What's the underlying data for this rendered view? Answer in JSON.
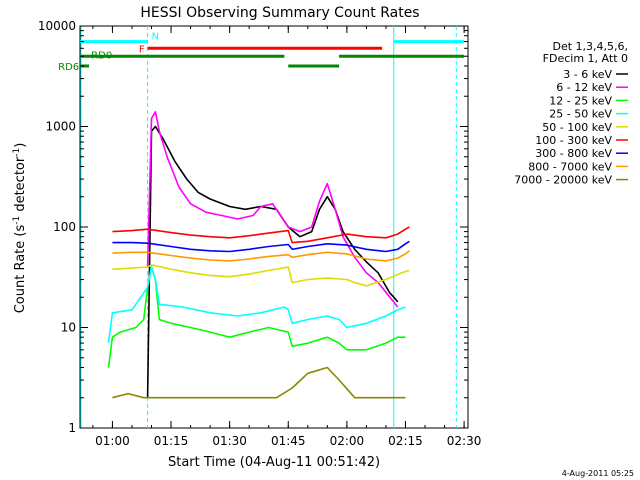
{
  "chart_data": {
    "type": "line",
    "title": "HESSI Observing Summary Count Rates",
    "xlabel": "Start Time (04-Aug-11 00:51:42)",
    "ylabel": "Count Rate (s⁻¹ detector⁻¹)",
    "ylabel_parts": {
      "main": "Count Rate (s",
      "sup1": "-1",
      "mid": " detector",
      "sup2": "-1",
      "end": ")"
    },
    "yscale": "log",
    "ylim": [
      1,
      10000
    ],
    "xlim": [
      "00:51:42",
      "02:31:00"
    ],
    "x_ticks": [
      "01:00",
      "01:15",
      "01:30",
      "01:45",
      "02:00",
      "02:15",
      "02:30"
    ],
    "y_ticks": [
      "1",
      "10",
      "100",
      "1000",
      "10000"
    ],
    "legend": {
      "header": [
        "Det 1,3,4,5,6,",
        "FDecim 1, Att 0"
      ],
      "position": "right",
      "entries": [
        {
          "label": "3 - 6 keV",
          "color": "#000000"
        },
        {
          "label": "6 - 12 keV",
          "color": "#ff00ff"
        },
        {
          "label": "12 - 25 keV",
          "color": "#00ff00"
        },
        {
          "label": "25 - 50 keV",
          "color": "#00ffff"
        },
        {
          "label": "50 - 100 keV",
          "color": "#dddd00"
        },
        {
          "label": "100 - 300 keV",
          "color": "#ff0000"
        },
        {
          "label": "300 - 800 keV",
          "color": "#0000ff"
        },
        {
          "label": "800 - 7000 keV",
          "color": "#ff9900"
        },
        {
          "label": "7000 - 20000 keV",
          "color": "#888800"
        }
      ]
    },
    "series": [
      {
        "name": "3 - 6 keV",
        "color": "#000000",
        "points": [
          [
            "01:09",
            2
          ],
          [
            "01:10",
            900
          ],
          [
            "01:11",
            1000
          ],
          [
            "01:13",
            750
          ],
          [
            "01:16",
            450
          ],
          [
            "01:19",
            300
          ],
          [
            "01:22",
            220
          ],
          [
            "01:25",
            190
          ],
          [
            "01:30",
            160
          ],
          [
            "01:34",
            150
          ],
          [
            "01:38",
            160
          ],
          [
            "01:42",
            150
          ],
          [
            "01:45",
            100
          ],
          [
            "01:48",
            80
          ],
          [
            "01:51",
            90
          ],
          [
            "01:53",
            150
          ],
          [
            "01:55",
            200
          ],
          [
            "01:57",
            150
          ],
          [
            "01:59",
            90
          ],
          [
            "02:02",
            60
          ],
          [
            "02:05",
            45
          ],
          [
            "02:08",
            35
          ],
          [
            "02:11",
            22
          ],
          [
            "02:12",
            20
          ],
          [
            "02:13",
            18
          ]
        ]
      },
      {
        "name": "6 - 12 keV",
        "color": "#ff00ff",
        "points": [
          [
            "01:09",
            40
          ],
          [
            "01:10",
            1200
          ],
          [
            "01:11",
            1400
          ],
          [
            "01:12",
            900
          ],
          [
            "01:14",
            500
          ],
          [
            "01:17",
            250
          ],
          [
            "01:20",
            170
          ],
          [
            "01:24",
            140
          ],
          [
            "01:28",
            130
          ],
          [
            "01:32",
            120
          ],
          [
            "01:36",
            130
          ],
          [
            "01:38",
            160
          ],
          [
            "01:41",
            170
          ],
          [
            "01:43",
            130
          ],
          [
            "01:45",
            100
          ],
          [
            "01:48",
            90
          ],
          [
            "01:51",
            100
          ],
          [
            "01:53",
            180
          ],
          [
            "01:55",
            270
          ],
          [
            "01:57",
            150
          ],
          [
            "01:59",
            80
          ],
          [
            "02:02",
            50
          ],
          [
            "02:05",
            35
          ],
          [
            "02:08",
            28
          ],
          [
            "02:11",
            20
          ],
          [
            "02:13",
            16
          ]
        ]
      },
      {
        "name": "12 - 25 keV",
        "color": "#00ff00",
        "points": [
          [
            "00:59",
            4
          ],
          [
            "01:00",
            8
          ],
          [
            "01:02",
            9
          ],
          [
            "01:06",
            10
          ],
          [
            "01:08",
            12
          ],
          [
            "01:09",
            25
          ],
          [
            "01:10",
            40
          ],
          [
            "01:11",
            30
          ],
          [
            "01:12",
            12
          ],
          [
            "01:15",
            11
          ],
          [
            "01:20",
            10
          ],
          [
            "01:25",
            9
          ],
          [
            "01:30",
            8
          ],
          [
            "01:35",
            9
          ],
          [
            "01:40",
            10
          ],
          [
            "01:45",
            9
          ],
          [
            "01:46",
            6.5
          ],
          [
            "01:50",
            7
          ],
          [
            "01:55",
            8
          ],
          [
            "01:58",
            7
          ],
          [
            "02:00",
            6
          ],
          [
            "02:05",
            6
          ],
          [
            "02:10",
            7
          ],
          [
            "02:13",
            8
          ],
          [
            "02:15",
            8
          ]
        ]
      },
      {
        "name": "25 - 50 keV",
        "color": "#00ffff",
        "points": [
          [
            "00:59",
            7
          ],
          [
            "01:00",
            14
          ],
          [
            "01:05",
            15
          ],
          [
            "01:09",
            25
          ],
          [
            "01:10",
            40
          ],
          [
            "01:11",
            30
          ],
          [
            "01:12",
            17
          ],
          [
            "01:18",
            16
          ],
          [
            "01:25",
            14
          ],
          [
            "01:32",
            13
          ],
          [
            "01:38",
            14
          ],
          [
            "01:44",
            16
          ],
          [
            "01:45",
            15
          ],
          [
            "01:46",
            11
          ],
          [
            "01:50",
            12
          ],
          [
            "01:55",
            13
          ],
          [
            "01:58",
            12
          ],
          [
            "02:00",
            10
          ],
          [
            "02:05",
            11
          ],
          [
            "02:10",
            13
          ],
          [
            "02:13",
            15
          ],
          [
            "02:15",
            16
          ]
        ]
      },
      {
        "name": "50 - 100 keV",
        "color": "#dddd00",
        "points": [
          [
            "01:00",
            38
          ],
          [
            "01:05",
            39
          ],
          [
            "01:09",
            40
          ],
          [
            "01:10",
            42
          ],
          [
            "01:15",
            38
          ],
          [
            "01:20",
            35
          ],
          [
            "01:25",
            33
          ],
          [
            "01:30",
            32
          ],
          [
            "01:35",
            34
          ],
          [
            "01:40",
            37
          ],
          [
            "01:45",
            40
          ],
          [
            "01:46",
            28
          ],
          [
            "01:50",
            30
          ],
          [
            "01:55",
            31
          ],
          [
            "02:00",
            30
          ],
          [
            "02:02",
            28
          ],
          [
            "02:05",
            26
          ],
          [
            "02:10",
            30
          ],
          [
            "02:14",
            35
          ],
          [
            "02:16",
            37
          ]
        ]
      },
      {
        "name": "100 - 300 keV",
        "color": "#ff0000",
        "points": [
          [
            "01:00",
            90
          ],
          [
            "01:05",
            92
          ],
          [
            "01:09",
            95
          ],
          [
            "01:15",
            88
          ],
          [
            "01:20",
            83
          ],
          [
            "01:25",
            80
          ],
          [
            "01:30",
            78
          ],
          [
            "01:35",
            82
          ],
          [
            "01:40",
            87
          ],
          [
            "01:45",
            92
          ],
          [
            "01:46",
            70
          ],
          [
            "01:50",
            72
          ],
          [
            "01:55",
            78
          ],
          [
            "02:00",
            85
          ],
          [
            "02:05",
            80
          ],
          [
            "02:10",
            78
          ],
          [
            "02:13",
            85
          ],
          [
            "02:15",
            95
          ],
          [
            "02:16",
            100
          ]
        ]
      },
      {
        "name": "300 - 800 keV",
        "color": "#0000ff",
        "points": [
          [
            "01:00",
            70
          ],
          [
            "01:05",
            70
          ],
          [
            "01:09",
            69
          ],
          [
            "01:15",
            64
          ],
          [
            "01:20",
            60
          ],
          [
            "01:25",
            58
          ],
          [
            "01:30",
            57
          ],
          [
            "01:35",
            60
          ],
          [
            "01:40",
            64
          ],
          [
            "01:45",
            67
          ],
          [
            "01:46",
            60
          ],
          [
            "01:50",
            64
          ],
          [
            "01:55",
            68
          ],
          [
            "02:00",
            66
          ],
          [
            "02:05",
            60
          ],
          [
            "02:10",
            57
          ],
          [
            "02:13",
            60
          ],
          [
            "02:15",
            68
          ],
          [
            "02:16",
            72
          ]
        ]
      },
      {
        "name": "800 - 7000 keV",
        "color": "#ff9900",
        "points": [
          [
            "01:00",
            55
          ],
          [
            "01:05",
            56
          ],
          [
            "01:09",
            56
          ],
          [
            "01:15",
            52
          ],
          [
            "01:20",
            49
          ],
          [
            "01:25",
            47
          ],
          [
            "01:30",
            46
          ],
          [
            "01:35",
            48
          ],
          [
            "01:40",
            51
          ],
          [
            "01:45",
            53
          ],
          [
            "01:46",
            50
          ],
          [
            "01:50",
            53
          ],
          [
            "01:55",
            56
          ],
          [
            "02:00",
            54
          ],
          [
            "02:05",
            48
          ],
          [
            "02:10",
            46
          ],
          [
            "02:13",
            49
          ],
          [
            "02:15",
            54
          ],
          [
            "02:16",
            58
          ]
        ]
      },
      {
        "name": "7000 - 20000 keV",
        "color": "#888800",
        "points": [
          [
            "01:00",
            2
          ],
          [
            "01:04",
            2.2
          ],
          [
            "01:08",
            2
          ],
          [
            "01:12",
            2
          ],
          [
            "01:18",
            2
          ],
          [
            "01:24",
            2
          ],
          [
            "01:30",
            2
          ],
          [
            "01:36",
            2
          ],
          [
            "01:42",
            2
          ],
          [
            "01:46",
            2.5
          ],
          [
            "01:50",
            3.5
          ],
          [
            "01:55",
            4
          ],
          [
            "01:58",
            3
          ],
          [
            "02:02",
            2
          ],
          [
            "02:08",
            2
          ],
          [
            "02:12",
            2
          ],
          [
            "02:15",
            2
          ]
        ]
      }
    ],
    "segment_bars": [
      {
        "label": "N",
        "color": "#00ffff",
        "level": 7000,
        "spans": [
          [
            "00:51:42",
            "01:09:00"
          ],
          [
            "02:12:00",
            "02:30:00"
          ]
        ]
      },
      {
        "label": "F",
        "color": "#ff0000",
        "level": 6000,
        "spans": [
          [
            "01:09:00",
            "02:09:00"
          ]
        ]
      },
      {
        "label": "RD0",
        "color": "#008800",
        "level": 5000,
        "spans": [
          [
            "00:52:00",
            "01:44:00"
          ],
          [
            "01:58:00",
            "02:30:00"
          ]
        ]
      },
      {
        "label": "RD6",
        "color": "#008800",
        "level": 4000,
        "spans": [
          [
            "00:52:00",
            "00:54:00"
          ],
          [
            "01:45:00",
            "01:58:00"
          ]
        ]
      }
    ],
    "vertical_markers": [
      {
        "color": "#00ffff",
        "style": "solid",
        "x": "00:51:42"
      },
      {
        "color": "#00ffff",
        "style": "dashed",
        "x": "01:09:00"
      },
      {
        "color": "#00ffff",
        "style": "solid",
        "x": "02:12:00"
      },
      {
        "color": "#00ffff",
        "style": "dashed",
        "x": "02:28:00"
      }
    ],
    "grid": false
  },
  "timestamp": "4-Aug-2011 05:25"
}
